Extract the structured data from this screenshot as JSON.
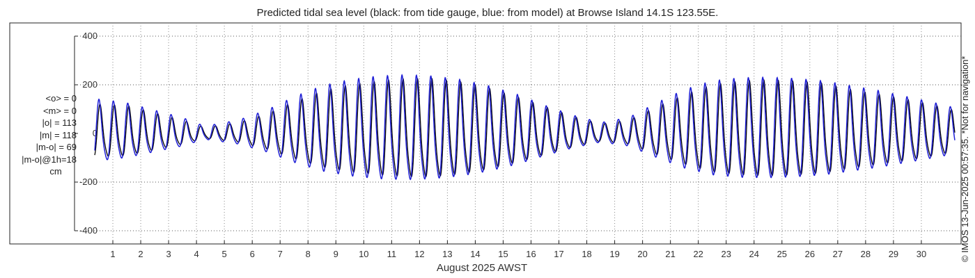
{
  "chart_data": {
    "type": "line",
    "title": "Predicted tidal sea level (black: from tide gauge, blue: from model) at Browse Island 14.1S 123.55E.",
    "xlabel": "August 2025 AWST",
    "ylabel": "",
    "ylim": [
      -410,
      410
    ],
    "yticks": [
      "400",
      "200",
      "0",
      "-200",
      "-400"
    ],
    "ytick_values": [
      400,
      200,
      0,
      -200,
      -400
    ],
    "xlim_days": [
      0.35,
      31.2
    ],
    "xticks": [
      "1",
      "2",
      "3",
      "4",
      "5",
      "6",
      "7",
      "8",
      "9",
      "10",
      "11",
      "12",
      "13",
      "14",
      "15",
      "16",
      "17",
      "18",
      "19",
      "20",
      "21",
      "22",
      "23",
      "24",
      "25",
      "26",
      "27",
      "28",
      "29",
      "30"
    ],
    "grid": true,
    "series": [
      {
        "name": "from tide gauge",
        "color": "#000000",
        "amplitude_envelope": {
          "day": [
            0.6,
            1.5,
            2.5,
            3.5,
            4.3,
            5.5,
            6.5,
            7.5,
            8.5,
            9.5,
            10.5,
            11.5,
            12.5,
            13.5,
            14.5,
            15.5,
            16.5,
            17.5,
            18.5,
            19.5,
            20.5,
            21.5,
            22.5,
            23.5,
            24.5,
            25.5,
            26.5,
            27.5,
            28.5,
            29.5,
            30.5,
            31.2
          ],
          "cm": [
            120,
            115,
            85,
            55,
            25,
            45,
            80,
            130,
            175,
            200,
            215,
            225,
            225,
            210,
            185,
            150,
            110,
            70,
            40,
            55,
            110,
            160,
            200,
            215,
            220,
            215,
            205,
            180,
            160,
            140,
            115,
            95
          ]
        }
      },
      {
        "name": "from model",
        "color": "#1f1fd6",
        "amplitude_envelope": {
          "day": [
            0.6,
            1.5,
            2.5,
            3.5,
            4.3,
            5.5,
            6.5,
            7.5,
            8.5,
            9.5,
            10.5,
            11.5,
            12.5,
            13.5,
            14.5,
            15.5,
            16.5,
            17.5,
            18.5,
            19.5,
            20.5,
            21.5,
            22.5,
            23.5,
            24.5,
            25.5,
            26.5,
            27.5,
            28.5,
            29.5,
            30.5,
            31.2
          ],
          "cm": [
            140,
            125,
            95,
            65,
            30,
            55,
            95,
            150,
            195,
            220,
            235,
            240,
            235,
            220,
            195,
            160,
            115,
            75,
            45,
            65,
            125,
            180,
            215,
            228,
            230,
            225,
            215,
            195,
            175,
            150,
            125,
            105
          ]
        }
      }
    ]
  },
  "stats": {
    "mean_obs": "<o> = 0",
    "mean_model": "<m> = 0",
    "abs_obs": "|o| = 113",
    "abs_model": "|m| = 118",
    "abs_diff": "|m-o| = 69",
    "abs_diff_1h": "|m-o|@1h=18",
    "unit": "cm"
  },
  "credit": "© IMOS 13-Jun-2025 00:57:35. *Not for navigation*"
}
